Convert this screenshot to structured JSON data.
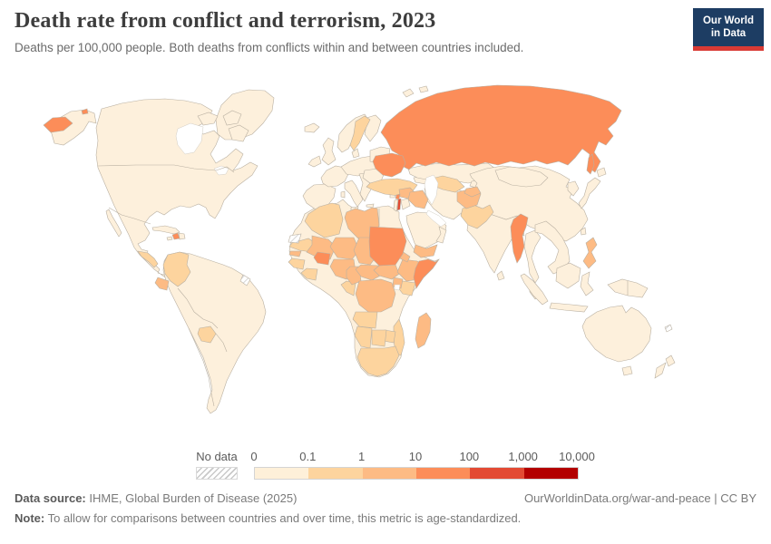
{
  "header": {
    "title": "Death rate from conflict and terrorism, 2023",
    "subtitle": "Deaths per 100,000 people. Both deaths from conflicts within and between countries included."
  },
  "logo": {
    "line1": "Our World",
    "line2": "in Data",
    "bg_color": "#1d3d63",
    "accent_color": "#d93a34"
  },
  "legend": {
    "no_data_label": "No data",
    "ticks": [
      "0",
      "0.1",
      "1",
      "10",
      "100",
      "1,000",
      "10,000"
    ],
    "bin_colors": [
      "#fef0d9",
      "#fdd49e",
      "#fdbb84",
      "#fc8d59",
      "#e34a33",
      "#b30000"
    ]
  },
  "footer": {
    "source_label": "Data source:",
    "source_text": " IHME, Global Burden of Disease (2025)",
    "rights": "OurWorldinData.org/war-and-peace | CC BY",
    "note_label": "Note:",
    "note_text": " To allow for comparisons between countries and over time, this metric is age-standardized."
  },
  "chart_data": {
    "type": "heatmap",
    "subtype": "world-choropleth-map",
    "title": "Death rate from conflict and terrorism, 2023",
    "year": "2023",
    "unit": "Deaths per 100,000 people (age-standardized)",
    "scale": "logarithmic bins",
    "legend_position": "bottom",
    "ocean_color": "#ffffff",
    "land_default_color": "#fdf0dc",
    "border_color": "#b9b0a2",
    "bins": [
      {
        "label": "0–0.1",
        "color": "#fef0d9"
      },
      {
        "label": "0.1–1",
        "color": "#fdd49e"
      },
      {
        "label": "1–10",
        "color": "#fdbb84"
      },
      {
        "label": "10–100",
        "color": "#fc8d59"
      },
      {
        "label": "100–1,000",
        "color": "#e34a33"
      },
      {
        "label": "1,000–10,000",
        "color": "#b30000"
      }
    ],
    "country_bins": {
      "Russia": 3,
      "Ukraine": 3,
      "Myanmar": 3,
      "Sudan": 3,
      "Somalia": 3,
      "Burkina Faso": 3,
      "Haiti": 3,
      "Lebanon": 3,
      "Palestine": 4,
      "Libya": 2,
      "Mali": 2,
      "Senegal": 2,
      "Niger": 2,
      "Chad": 2,
      "Nigeria": 2,
      "Cameroon": 2,
      "Central African Republic": 2,
      "South Sudan": 2,
      "Democratic Republic of Congo": 2,
      "Uganda": 2,
      "Ethiopia": 2,
      "Eritrea": 2,
      "Madagascar": 2,
      "Syria": 2,
      "Iraq": 2,
      "Yemen": 2,
      "Afghanistan": 2,
      "Tajikistan": 2,
      "Philippines": 2,
      "Ecuador": 2,
      "Sweden": 1,
      "Turkey": 1,
      "Algeria": 1,
      "Mauritania": 1,
      "Guinea": 1,
      "Cote d'Ivoire": 1,
      "Kenya": 1,
      "Republic of Congo": 1,
      "Angola": 1,
      "Mozambique": 1,
      "Zimbabwe": 1,
      "Namibia": 1,
      "Botswana": 1,
      "South Africa": 1,
      "Pakistan": 1,
      "Uzbekistan": 1,
      "Turkmenistan": 1,
      "Colombia": 1,
      "Paraguay": 1,
      "Honduras": 1,
      "Guatemala": 1,
      "French Guiana": "no-data",
      "Western Sahara": "no-data",
      "New Caledonia": "no-data"
    },
    "countries_without_listed_bin": "shown in lightest bin 0–0.1"
  }
}
